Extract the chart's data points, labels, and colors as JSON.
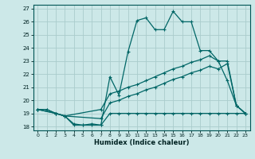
{
  "xlabel": "Humidex (Indice chaleur)",
  "bg_color": "#cce8e8",
  "grid_color": "#aacccc",
  "line_color": "#006666",
  "xlim": [
    -0.5,
    23.5
  ],
  "ylim": [
    17.7,
    27.3
  ],
  "yticks": [
    18,
    19,
    20,
    21,
    22,
    23,
    24,
    25,
    26,
    27
  ],
  "xticks": [
    0,
    1,
    2,
    3,
    4,
    5,
    6,
    7,
    8,
    9,
    10,
    11,
    12,
    13,
    14,
    15,
    16,
    17,
    18,
    19,
    20,
    21,
    22,
    23
  ],
  "lines": [
    {
      "x": [
        0,
        1,
        2,
        3,
        4,
        5,
        6,
        7,
        8,
        9,
        10,
        11,
        12,
        13,
        14,
        15,
        16,
        17,
        18,
        19,
        20,
        21,
        22,
        23
      ],
      "y": [
        19.3,
        19.3,
        19.0,
        18.8,
        18.1,
        18.1,
        18.1,
        18.1,
        21.8,
        20.4,
        23.7,
        26.1,
        26.3,
        25.4,
        25.4,
        26.8,
        26.0,
        26.0,
        23.8,
        23.8,
        23.0,
        21.5,
        19.6,
        19.0
      ]
    },
    {
      "x": [
        0,
        2,
        3,
        7,
        8,
        9,
        10,
        11,
        12,
        13,
        14,
        15,
        16,
        17,
        18,
        19,
        20,
        21,
        22,
        23
      ],
      "y": [
        19.3,
        19.0,
        18.8,
        19.3,
        20.5,
        20.7,
        21.0,
        21.2,
        21.5,
        21.8,
        22.1,
        22.4,
        22.6,
        22.9,
        23.1,
        23.4,
        23.0,
        23.0,
        19.6,
        19.0
      ]
    },
    {
      "x": [
        0,
        2,
        3,
        7,
        8,
        9,
        10,
        11,
        12,
        13,
        14,
        15,
        16,
        17,
        18,
        19,
        20,
        21,
        22,
        23
      ],
      "y": [
        19.3,
        19.0,
        18.8,
        18.6,
        19.8,
        20.0,
        20.3,
        20.5,
        20.8,
        21.0,
        21.3,
        21.6,
        21.8,
        22.1,
        22.3,
        22.6,
        22.4,
        22.8,
        19.6,
        19.0
      ]
    },
    {
      "x": [
        0,
        1,
        2,
        3,
        4,
        5,
        6,
        7,
        8,
        9,
        10,
        11,
        12,
        13,
        14,
        15,
        16,
        17,
        18,
        19,
        20,
        21,
        22,
        23
      ],
      "y": [
        19.3,
        19.3,
        19.0,
        18.8,
        18.2,
        18.1,
        18.2,
        18.1,
        19.0,
        19.0,
        19.0,
        19.0,
        19.0,
        19.0,
        19.0,
        19.0,
        19.0,
        19.0,
        19.0,
        19.0,
        19.0,
        19.0,
        19.0,
        19.0
      ]
    }
  ]
}
